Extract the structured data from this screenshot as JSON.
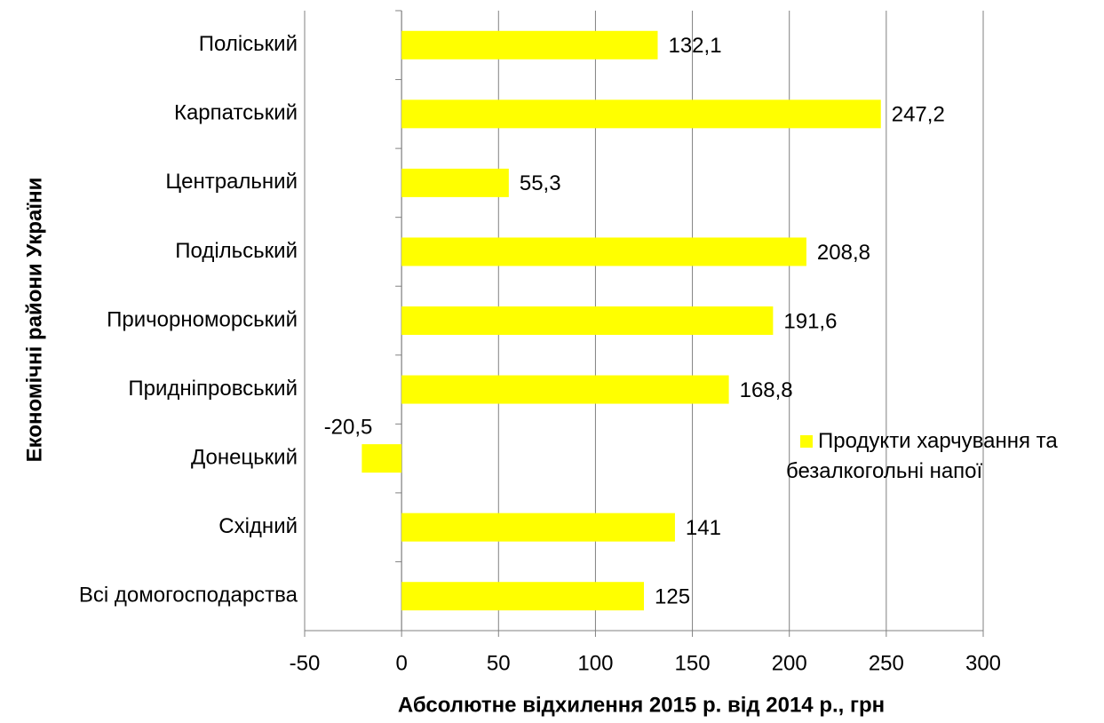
{
  "chart_data": {
    "type": "barh",
    "y_label": "Економічні райони України",
    "x_label": "Абсолютне відхилення 2015 р. від 2014 р., грн",
    "categories": [
      "Поліський",
      "Карпатський",
      "Центральний",
      "Подільський",
      "Причорноморський",
      "Придніпровський",
      "Донецький",
      "Східний",
      "Всі домогосподарства"
    ],
    "series": [
      {
        "name": "Продукти харчування та безалкогольні напої",
        "color": "#ffff00",
        "values": [
          132.1,
          247.2,
          55.3,
          208.8,
          191.6,
          168.8,
          -20.5,
          141,
          125
        ],
        "value_labels": [
          "132,1",
          "247,2",
          "55,3",
          "208,8",
          "191,6",
          "168,8",
          "-20,5",
          "141",
          "125"
        ]
      }
    ],
    "xlim": [
      -50,
      300
    ],
    "xticks": [
      -50,
      0,
      50,
      100,
      150,
      200,
      250,
      300
    ],
    "grid": true
  }
}
